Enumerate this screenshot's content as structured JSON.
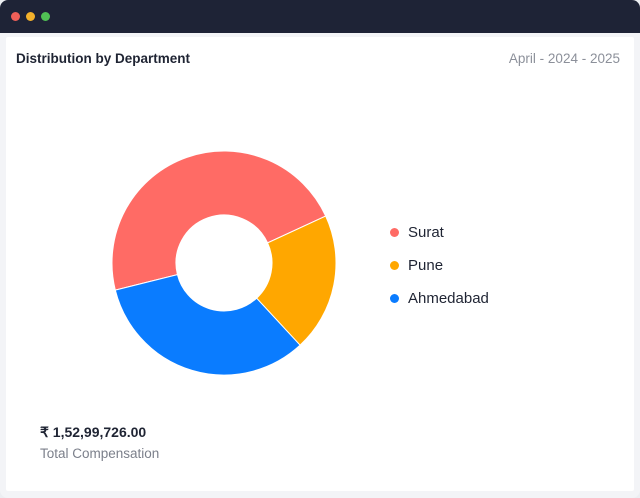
{
  "window": {
    "controls": [
      "close",
      "minimize",
      "maximize"
    ]
  },
  "card": {
    "title": "Distribution by Department",
    "period": "April - 2024 - 2025"
  },
  "chart_data": {
    "type": "pie",
    "variant": "donut",
    "categories": [
      "Surat",
      "Pune",
      "Ahmedabad"
    ],
    "values": [
      47,
      20,
      33
    ],
    "unit": "percent (estimated share)",
    "colors": [
      "#ff6b65",
      "#ffa700",
      "#0a7cff"
    ],
    "legend_position": "right"
  },
  "summary": {
    "total_value": "₹ 1,52,99,726.00",
    "total_label": "Total Compensation"
  }
}
